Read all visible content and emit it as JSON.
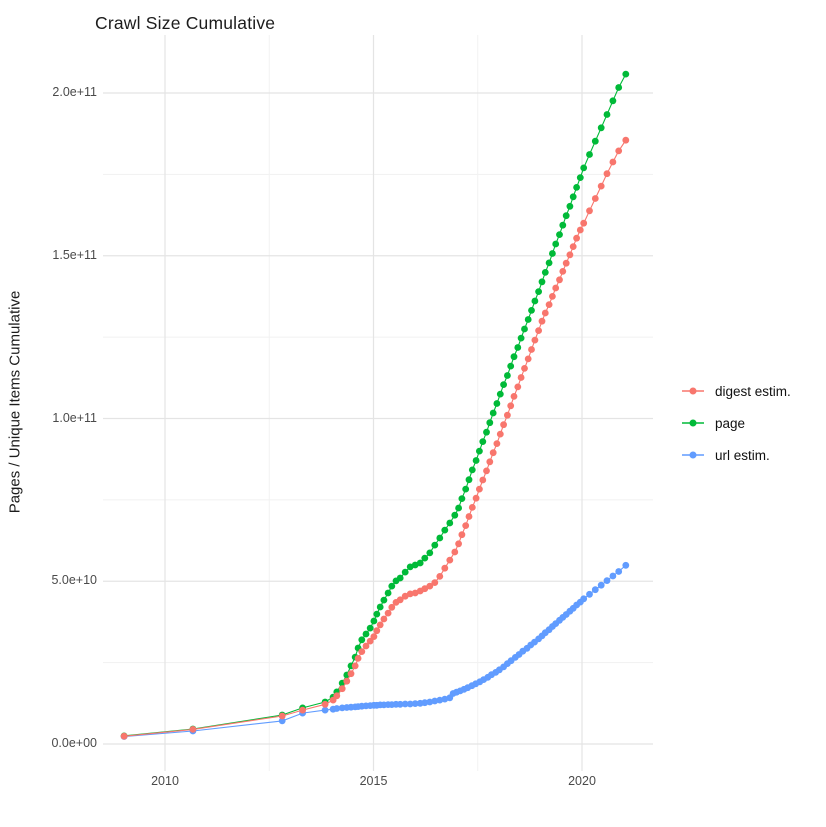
{
  "title": "Crawl Size Cumulative",
  "y_axis": {
    "label": "Pages / Unique Items Cumulative",
    "ticks": [
      {
        "value": 0,
        "label": "0.0e+00"
      },
      {
        "value": 50,
        "label": "5.0e+10"
      },
      {
        "value": 100,
        "label": "1.0e+11"
      },
      {
        "value": 150,
        "label": "1.5e+11"
      },
      {
        "value": 200,
        "label": "2.0e+11"
      }
    ],
    "minor_values": [
      25,
      75,
      125,
      175
    ]
  },
  "x_axis": {
    "ticks": [
      {
        "value": 2010,
        "label": "2010"
      },
      {
        "value": 2015,
        "label": "2015"
      },
      {
        "value": 2020,
        "label": "2020"
      }
    ],
    "minor_values": [
      2012.5,
      2017.5
    ]
  },
  "legend": {
    "items": [
      {
        "label": "digest estim.",
        "color": "#F8766D"
      },
      {
        "label": "page",
        "color": "#00BA38"
      },
      {
        "label": "url estim.",
        "color": "#619CFF"
      }
    ]
  },
  "colors": {
    "digest": "#F8766D",
    "page": "#00BA38",
    "url": "#619CFF",
    "grid_major": "#E4E4E4",
    "grid_minor": "#F1F1F1",
    "tick_text": "#4a4a4a",
    "title_text": "#1c1c1c"
  },
  "chart_data": {
    "type": "scatter",
    "title": "Crawl Size Cumulative",
    "xlabel": "",
    "ylabel": "Pages / Unique Items Cumulative",
    "x_tick_labels": [
      "2010",
      "2015",
      "2020"
    ],
    "y_tick_labels": [
      "0.0e+00",
      "5.0e+10",
      "1.0e+11",
      "1.5e+11",
      "2.0e+11"
    ],
    "value_unit_pages": 1000000000,
    "xlim_years": [
      2008.5,
      2021.7
    ],
    "ylim": [
      0,
      220000000000
    ],
    "grid": "on",
    "legend_position": "right-center",
    "marker": "point-with-line",
    "series": [
      {
        "name": "digest estim.",
        "color": "#F8766D",
        "points": [
          [
            2009.02,
            2.4
          ],
          [
            2010.67,
            4.5
          ],
          [
            2012.81,
            8.6
          ],
          [
            2013.3,
            10.4
          ],
          [
            2013.84,
            12.2
          ],
          [
            2014.03,
            13.5
          ],
          [
            2014.12,
            14.8
          ],
          [
            2014.25,
            17.0
          ],
          [
            2014.36,
            19.3
          ],
          [
            2014.46,
            21.6
          ],
          [
            2014.56,
            24.0
          ],
          [
            2014.63,
            26.3
          ],
          [
            2014.72,
            28.4
          ],
          [
            2014.82,
            30.1
          ],
          [
            2014.92,
            31.6
          ],
          [
            2015.01,
            33.0
          ],
          [
            2015.08,
            34.8
          ],
          [
            2015.16,
            36.6
          ],
          [
            2015.25,
            38.4
          ],
          [
            2015.35,
            40.2
          ],
          [
            2015.44,
            42.0
          ],
          [
            2015.54,
            43.5
          ],
          [
            2015.64,
            44.3
          ],
          [
            2015.76,
            45.4
          ],
          [
            2015.88,
            46.1
          ],
          [
            2016.0,
            46.4
          ],
          [
            2016.12,
            47.0
          ],
          [
            2016.23,
            47.7
          ],
          [
            2016.35,
            48.5
          ],
          [
            2016.47,
            49.6
          ],
          [
            2016.59,
            51.5
          ],
          [
            2016.71,
            54.0
          ],
          [
            2016.83,
            56.5
          ],
          [
            2016.95,
            59.0
          ],
          [
            2017.04,
            61.5
          ],
          [
            2017.12,
            64.3
          ],
          [
            2017.21,
            67.1
          ],
          [
            2017.29,
            69.9
          ],
          [
            2017.37,
            72.7
          ],
          [
            2017.46,
            75.5
          ],
          [
            2017.54,
            78.3
          ],
          [
            2017.62,
            81.1
          ],
          [
            2017.71,
            83.9
          ],
          [
            2017.79,
            86.7
          ],
          [
            2017.87,
            89.5
          ],
          [
            2017.96,
            92.3
          ],
          [
            2018.04,
            95.2
          ],
          [
            2018.12,
            98.1
          ],
          [
            2018.21,
            101.0
          ],
          [
            2018.29,
            103.9
          ],
          [
            2018.37,
            106.8
          ],
          [
            2018.46,
            109.7
          ],
          [
            2018.54,
            112.6
          ],
          [
            2018.62,
            115.4
          ],
          [
            2018.71,
            118.3
          ],
          [
            2018.79,
            121.2
          ],
          [
            2018.87,
            124.1
          ],
          [
            2018.96,
            127.0
          ],
          [
            2019.04,
            129.9
          ],
          [
            2019.12,
            132.4
          ],
          [
            2019.21,
            135.0
          ],
          [
            2019.29,
            137.5
          ],
          [
            2019.37,
            140.1
          ],
          [
            2019.46,
            142.6
          ],
          [
            2019.54,
            145.2
          ],
          [
            2019.62,
            147.7
          ],
          [
            2019.71,
            150.3
          ],
          [
            2019.79,
            152.8
          ],
          [
            2019.87,
            155.4
          ],
          [
            2019.96,
            157.9
          ],
          [
            2020.04,
            160.0
          ],
          [
            2020.18,
            163.8
          ],
          [
            2020.32,
            167.6
          ],
          [
            2020.46,
            171.4
          ],
          [
            2020.6,
            175.2
          ],
          [
            2020.74,
            178.8
          ],
          [
            2020.88,
            182.2
          ],
          [
            2021.05,
            185.5
          ]
        ]
      },
      {
        "name": "page",
        "color": "#00BA38",
        "points": [
          [
            2009.02,
            2.5
          ],
          [
            2010.67,
            4.6
          ],
          [
            2012.81,
            8.9
          ],
          [
            2013.3,
            11.1
          ],
          [
            2013.84,
            12.9
          ],
          [
            2014.03,
            14.4
          ],
          [
            2014.12,
            16.0
          ],
          [
            2014.25,
            18.7
          ],
          [
            2014.36,
            21.2
          ],
          [
            2014.46,
            24.0
          ],
          [
            2014.56,
            26.7
          ],
          [
            2014.63,
            29.5
          ],
          [
            2014.72,
            32.0
          ],
          [
            2014.82,
            33.8
          ],
          [
            2014.92,
            35.6
          ],
          [
            2015.01,
            37.8
          ],
          [
            2015.08,
            39.9
          ],
          [
            2015.16,
            42.1
          ],
          [
            2015.25,
            44.2
          ],
          [
            2015.35,
            46.4
          ],
          [
            2015.44,
            48.5
          ],
          [
            2015.54,
            50.1
          ],
          [
            2015.64,
            51.0
          ],
          [
            2015.76,
            52.8
          ],
          [
            2015.88,
            54.4
          ],
          [
            2016.0,
            55.0
          ],
          [
            2016.12,
            55.6
          ],
          [
            2016.23,
            57.1
          ],
          [
            2016.35,
            58.7
          ],
          [
            2016.47,
            61.1
          ],
          [
            2016.59,
            63.3
          ],
          [
            2016.71,
            65.7
          ],
          [
            2016.83,
            67.9
          ],
          [
            2016.95,
            70.3
          ],
          [
            2017.04,
            72.5
          ],
          [
            2017.12,
            75.4
          ],
          [
            2017.21,
            78.3
          ],
          [
            2017.29,
            81.2
          ],
          [
            2017.37,
            84.2
          ],
          [
            2017.46,
            87.1
          ],
          [
            2017.54,
            90.0
          ],
          [
            2017.62,
            92.9
          ],
          [
            2017.71,
            95.8
          ],
          [
            2017.79,
            98.7
          ],
          [
            2017.87,
            101.7
          ],
          [
            2017.96,
            104.6
          ],
          [
            2018.04,
            107.5
          ],
          [
            2018.12,
            110.4
          ],
          [
            2018.21,
            113.2
          ],
          [
            2018.29,
            116.1
          ],
          [
            2018.37,
            119.0
          ],
          [
            2018.46,
            121.8
          ],
          [
            2018.54,
            124.7
          ],
          [
            2018.62,
            127.5
          ],
          [
            2018.71,
            130.4
          ],
          [
            2018.79,
            133.2
          ],
          [
            2018.87,
            136.1
          ],
          [
            2018.96,
            139.0
          ],
          [
            2019.04,
            142.0
          ],
          [
            2019.12,
            144.9
          ],
          [
            2019.21,
            147.8
          ],
          [
            2019.29,
            150.7
          ],
          [
            2019.37,
            153.6
          ],
          [
            2019.46,
            156.5
          ],
          [
            2019.54,
            159.4
          ],
          [
            2019.62,
            162.3
          ],
          [
            2019.71,
            165.2
          ],
          [
            2019.79,
            168.1
          ],
          [
            2019.87,
            171.0
          ],
          [
            2019.96,
            174.0
          ],
          [
            2020.04,
            177.0
          ],
          [
            2020.18,
            181.1
          ],
          [
            2020.32,
            185.2
          ],
          [
            2020.46,
            189.3
          ],
          [
            2020.6,
            193.4
          ],
          [
            2020.74,
            197.6
          ],
          [
            2020.88,
            201.7
          ],
          [
            2021.05,
            205.8
          ]
        ]
      },
      {
        "name": "url estim.",
        "color": "#619CFF",
        "points": [
          [
            2009.02,
            2.3
          ],
          [
            2010.67,
            4.0
          ],
          [
            2012.81,
            7.1
          ],
          [
            2013.3,
            9.5
          ],
          [
            2013.84,
            10.4
          ],
          [
            2014.03,
            10.7
          ],
          [
            2014.12,
            10.9
          ],
          [
            2014.25,
            11.1
          ],
          [
            2014.36,
            11.2
          ],
          [
            2014.46,
            11.3
          ],
          [
            2014.56,
            11.4
          ],
          [
            2014.63,
            11.5
          ],
          [
            2014.72,
            11.6
          ],
          [
            2014.82,
            11.7
          ],
          [
            2014.92,
            11.8
          ],
          [
            2015.01,
            11.9
          ],
          [
            2015.08,
            11.9
          ],
          [
            2015.16,
            12.0
          ],
          [
            2015.25,
            12.0
          ],
          [
            2015.35,
            12.1
          ],
          [
            2015.44,
            12.1
          ],
          [
            2015.54,
            12.2
          ],
          [
            2015.64,
            12.2
          ],
          [
            2015.76,
            12.3
          ],
          [
            2015.88,
            12.3
          ],
          [
            2016.0,
            12.4
          ],
          [
            2016.12,
            12.5
          ],
          [
            2016.23,
            12.7
          ],
          [
            2016.35,
            12.9
          ],
          [
            2016.47,
            13.2
          ],
          [
            2016.59,
            13.5
          ],
          [
            2016.71,
            13.8
          ],
          [
            2016.83,
            14.2
          ],
          [
            2016.91,
            15.5
          ],
          [
            2016.99,
            15.9
          ],
          [
            2017.08,
            16.3
          ],
          [
            2017.17,
            16.8
          ],
          [
            2017.26,
            17.3
          ],
          [
            2017.36,
            17.9
          ],
          [
            2017.45,
            18.5
          ],
          [
            2017.55,
            19.1
          ],
          [
            2017.64,
            19.8
          ],
          [
            2017.74,
            20.5
          ],
          [
            2017.83,
            21.3
          ],
          [
            2017.93,
            22.0
          ],
          [
            2018.02,
            22.8
          ],
          [
            2018.12,
            23.7
          ],
          [
            2018.21,
            24.7
          ],
          [
            2018.3,
            25.6
          ],
          [
            2018.4,
            26.6
          ],
          [
            2018.49,
            27.5
          ],
          [
            2018.58,
            28.5
          ],
          [
            2018.68,
            29.4
          ],
          [
            2018.77,
            30.4
          ],
          [
            2018.86,
            31.3
          ],
          [
            2018.96,
            32.3
          ],
          [
            2019.04,
            33.2
          ],
          [
            2019.12,
            34.2
          ],
          [
            2019.21,
            35.1
          ],
          [
            2019.29,
            36.1
          ],
          [
            2019.37,
            37.0
          ],
          [
            2019.46,
            38.0
          ],
          [
            2019.54,
            38.9
          ],
          [
            2019.62,
            39.8
          ],
          [
            2019.71,
            40.8
          ],
          [
            2019.79,
            41.7
          ],
          [
            2019.87,
            42.7
          ],
          [
            2019.96,
            43.6
          ],
          [
            2020.04,
            44.6
          ],
          [
            2020.18,
            46.0
          ],
          [
            2020.32,
            47.4
          ],
          [
            2020.46,
            48.8
          ],
          [
            2020.6,
            50.2
          ],
          [
            2020.74,
            51.6
          ],
          [
            2020.88,
            53.0
          ],
          [
            2021.05,
            54.9
          ]
        ]
      }
    ]
  }
}
